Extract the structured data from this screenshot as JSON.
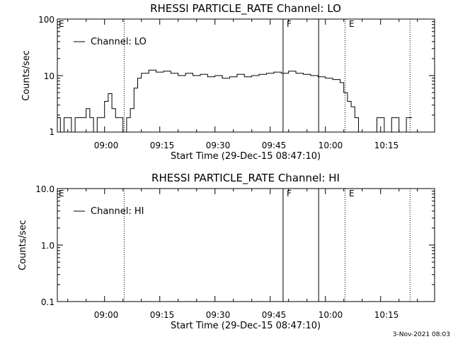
{
  "footer": {
    "text": "3-Nov-2021 08:03"
  },
  "chart_data": [
    {
      "type": "line",
      "title": "RHESSI PARTICLE_RATE Channel: LO",
      "xlabel": "Start Time (29-Dec-15 08:47:10)",
      "ylabel": "Counts/sec",
      "yscale": "log",
      "ylim": [
        1,
        100
      ],
      "xlim": [
        "08:47:10",
        "10:29:40"
      ],
      "ytick_labels": [
        "1",
        "10",
        "100"
      ],
      "yticks": [
        1,
        10,
        100
      ],
      "xtick_labels": [
        "09:00",
        "09:15",
        "09:30",
        "09:45",
        "10:00",
        "10:15"
      ],
      "legend": {
        "position": "top-left",
        "entries": [
          "Channel: LO"
        ]
      },
      "event_markers": [
        {
          "label": "E",
          "time": "08:47:10",
          "style": "dotted"
        },
        {
          "label": "",
          "time": "09:05:20",
          "style": "dotted"
        },
        {
          "label": "F",
          "time": "09:48:30",
          "style": "solid"
        },
        {
          "label": "",
          "time": "09:58:10",
          "style": "solid"
        },
        {
          "label": "E",
          "time": "10:05:20",
          "style": "dotted"
        },
        {
          "label": "",
          "time": "10:23:00",
          "style": "dotted"
        }
      ],
      "series": [
        {
          "name": "Channel: LO",
          "x": [
            "08:47",
            "08:48",
            "08:49",
            "08:50",
            "08:51",
            "08:52",
            "08:53",
            "08:54",
            "08:55",
            "08:56",
            "08:57",
            "08:58",
            "08:59",
            "09:00",
            "09:01",
            "09:02",
            "09:03",
            "09:04",
            "09:05",
            "09:06",
            "09:07",
            "09:08",
            "09:09",
            "09:10",
            "09:12",
            "09:14",
            "09:16",
            "09:18",
            "09:20",
            "09:22",
            "09:24",
            "09:26",
            "09:28",
            "09:30",
            "09:32",
            "09:34",
            "09:36",
            "09:38",
            "09:40",
            "09:42",
            "09:44",
            "09:46",
            "09:48",
            "09:50",
            "09:52",
            "09:54",
            "09:56",
            "09:58",
            "10:00",
            "10:02",
            "10:04",
            "10:05",
            "10:06",
            "10:07",
            "10:08",
            "10:09",
            "10:10",
            "10:11",
            "10:12",
            "10:14",
            "10:16",
            "10:18",
            "10:20",
            "10:22"
          ],
          "values": [
            1.8,
            1.0,
            1.8,
            1.8,
            1.0,
            1.8,
            1.8,
            1.8,
            2.6,
            1.8,
            1.0,
            1.8,
            1.8,
            3.5,
            4.8,
            2.6,
            1.8,
            1.8,
            1.0,
            1.8,
            2.6,
            6.0,
            9.0,
            11.0,
            12.5,
            11.5,
            12.0,
            11.0,
            10.0,
            11.0,
            10.0,
            10.5,
            9.5,
            10.0,
            9.0,
            9.5,
            10.5,
            9.5,
            10.0,
            10.5,
            11.0,
            11.5,
            11.0,
            12.0,
            11.0,
            10.5,
            10.0,
            9.5,
            9.0,
            8.5,
            7.5,
            5.0,
            3.5,
            2.8,
            1.8,
            1.0,
            1.0,
            1.0,
            1.0,
            1.8,
            1.0,
            1.8,
            1.0,
            1.8
          ]
        }
      ]
    },
    {
      "type": "line",
      "title": "RHESSI PARTICLE_RATE Channel: HI",
      "xlabel": "Start Time (29-Dec-15 08:47:10)",
      "ylabel": "Counts/sec",
      "yscale": "log",
      "ylim": [
        0.1,
        10
      ],
      "xlim": [
        "08:47:10",
        "10:29:40"
      ],
      "ytick_labels": [
        "0.1",
        "1.0",
        "10.0"
      ],
      "yticks": [
        0.1,
        1,
        10
      ],
      "xtick_labels": [
        "09:00",
        "09:15",
        "09:30",
        "09:45",
        "10:00",
        "10:15"
      ],
      "legend": {
        "position": "top-left",
        "entries": [
          "Channel: HI"
        ]
      },
      "event_markers": [
        {
          "label": "E",
          "time": "08:47:10",
          "style": "dotted"
        },
        {
          "label": "",
          "time": "09:05:20",
          "style": "dotted"
        },
        {
          "label": "F",
          "time": "09:48:30",
          "style": "solid"
        },
        {
          "label": "",
          "time": "09:58:10",
          "style": "solid"
        },
        {
          "label": "E",
          "time": "10:05:20",
          "style": "dotted"
        },
        {
          "label": "",
          "time": "10:23:00",
          "style": "dotted"
        }
      ],
      "series": [
        {
          "name": "Channel: HI",
          "x": [],
          "values": []
        }
      ]
    }
  ]
}
